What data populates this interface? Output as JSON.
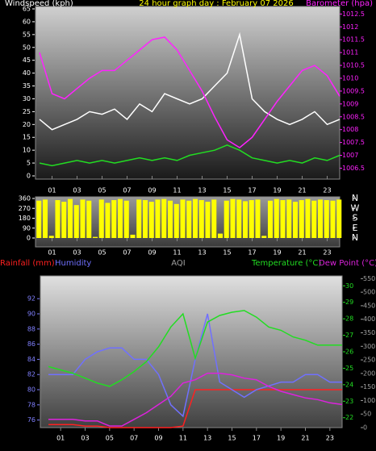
{
  "chart_data": [
    {
      "type": "line",
      "title": "24 hour graph day : February 07 2026",
      "y_label": "Windspeed (kph)",
      "y2_label": "Barometer (hpa)",
      "x": [
        0,
        1,
        2,
        3,
        4,
        5,
        6,
        7,
        8,
        9,
        10,
        11,
        12,
        13,
        14,
        15,
        16,
        17,
        18,
        19,
        20,
        21,
        22,
        23,
        24
      ],
      "xlim": [
        0,
        24
      ],
      "xticks": [
        {
          "value": 1,
          "label": "01"
        },
        {
          "value": 3,
          "label": "03"
        },
        {
          "value": 5,
          "label": "05"
        },
        {
          "value": 7,
          "label": "07"
        },
        {
          "value": 9,
          "label": "09"
        },
        {
          "value": 11,
          "label": "11"
        },
        {
          "value": 13,
          "label": "13"
        },
        {
          "value": 15,
          "label": "15"
        },
        {
          "value": 17,
          "label": "17"
        },
        {
          "value": 19,
          "label": "19"
        },
        {
          "value": 21,
          "label": "21"
        },
        {
          "value": 23,
          "label": "23"
        }
      ],
      "ylim": [
        0,
        65
      ],
      "yticks": [
        0,
        5,
        10,
        15,
        20,
        25,
        30,
        35,
        40,
        45,
        50,
        55,
        60,
        65
      ],
      "y2lim": [
        1006.2,
        1012.7
      ],
      "y2ticks": [
        1006.5,
        1007,
        1007.5,
        1008,
        1008.5,
        1009,
        1009.5,
        1010,
        1010.5,
        1011,
        1011.5,
        1012,
        1012.5
      ],
      "series": [
        {
          "color": "#ffffff",
          "values": [
            22,
            18,
            20,
            22,
            25,
            24,
            26,
            22,
            28,
            25,
            32,
            30,
            28,
            30,
            35,
            40,
            55,
            30,
            25,
            22,
            20,
            22,
            25,
            20,
            22
          ]
        },
        {
          "color": "#22dd22",
          "values": [
            5,
            4,
            5,
            6,
            5,
            6,
            5,
            6,
            7,
            6,
            7,
            6,
            8,
            9,
            10,
            12,
            10,
            7,
            6,
            5,
            6,
            5,
            7,
            6,
            8
          ]
        },
        {
          "color": "#ff22ff",
          "axis": "y2",
          "values": [
            1011.0,
            1009.4,
            1009.2,
            1009.6,
            1010.0,
            1010.3,
            1010.3,
            1010.7,
            1011.1,
            1011.5,
            1011.6,
            1011.1,
            1010.3,
            1009.5,
            1008.5,
            1007.6,
            1007.3,
            1007.7,
            1008.4,
            1009.1,
            1009.7,
            1010.3,
            1010.5,
            1010.1,
            1009.3
          ]
        }
      ]
    },
    {
      "type": "bar",
      "x": [
        0,
        0.5,
        1,
        1.5,
        2,
        2.5,
        3,
        3.5,
        4,
        4.5,
        5,
        5.5,
        6,
        6.5,
        7,
        7.5,
        8,
        8.5,
        9,
        9.5,
        10,
        10.5,
        11,
        11.5,
        12,
        12.5,
        13,
        13.5,
        14,
        14.5,
        15,
        15.5,
        16,
        16.5,
        17,
        17.5,
        18,
        18.5,
        19,
        19.5,
        20,
        20.5,
        21,
        21.5,
        22,
        22.5,
        23,
        23.5,
        24
      ],
      "xlim": [
        0,
        24
      ],
      "xticks": [
        {
          "value": 1,
          "label": "01"
        },
        {
          "value": 3,
          "label": "03"
        },
        {
          "value": 5,
          "label": "05"
        },
        {
          "value": 7,
          "label": "07"
        },
        {
          "value": 9,
          "label": "09"
        },
        {
          "value": 11,
          "label": "11"
        },
        {
          "value": 13,
          "label": "13"
        },
        {
          "value": 15,
          "label": "15"
        },
        {
          "value": 17,
          "label": "17"
        },
        {
          "value": 19,
          "label": "19"
        },
        {
          "value": 21,
          "label": "21"
        },
        {
          "value": 23,
          "label": "23"
        }
      ],
      "ylim": [
        0,
        360
      ],
      "yticks": [
        0,
        90,
        180,
        270,
        360
      ],
      "y2ticks": [
        {
          "value": 360,
          "label": "N"
        },
        {
          "value": 270,
          "label": "W"
        },
        {
          "value": 180,
          "label": "S"
        },
        {
          "value": 90,
          "label": "E"
        },
        {
          "value": 0,
          "label": "N"
        }
      ],
      "color": "#ffff00",
      "values": [
        340,
        350,
        20,
        345,
        330,
        355,
        300,
        350,
        340,
        10,
        350,
        320,
        345,
        355,
        340,
        30,
        350,
        345,
        330,
        350,
        355,
        340,
        310,
        350,
        340,
        355,
        345,
        330,
        350,
        40,
        340,
        355,
        350,
        335,
        345,
        350,
        20,
        340,
        355,
        345,
        350,
        330,
        345,
        355,
        340,
        350,
        345,
        340,
        350
      ]
    },
    {
      "type": "line",
      "x": [
        0,
        1,
        2,
        3,
        4,
        5,
        6,
        7,
        8,
        9,
        10,
        11,
        12,
        13,
        14,
        15,
        16,
        17,
        18,
        19,
        20,
        21,
        22,
        23,
        24
      ],
      "xlim": [
        0,
        24
      ],
      "xticks": [
        {
          "value": 1,
          "label": "01"
        },
        {
          "value": 3,
          "label": "03"
        },
        {
          "value": 5,
          "label": "05"
        },
        {
          "value": 7,
          "label": "07"
        },
        {
          "value": 9,
          "label": "09"
        },
        {
          "value": 11,
          "label": "11"
        },
        {
          "value": 13,
          "label": "13"
        },
        {
          "value": 15,
          "label": "15"
        },
        {
          "value": 17,
          "label": "17"
        },
        {
          "value": 19,
          "label": "19"
        },
        {
          "value": 21,
          "label": "21"
        },
        {
          "value": 23,
          "label": "23"
        }
      ],
      "ylim": [
        75,
        95
      ],
      "yticks": [
        76,
        78,
        80,
        82,
        84,
        86,
        88,
        90,
        92
      ],
      "y2lim": [
        21.4,
        30.6
      ],
      "y2ticks": [
        22,
        23,
        24,
        25,
        26,
        27,
        28,
        29,
        30
      ],
      "y3_label": "AQI",
      "y3lim": [
        0,
        560
      ],
      "y3ticks": [
        0,
        50,
        100,
        150,
        200,
        250,
        300,
        350,
        400,
        450,
        500,
        550
      ],
      "y4lim": [
        0,
        1
      ],
      "series": [
        {
          "name": "Rainfall (mm)",
          "color": "#ff2020",
          "axis": "y4",
          "values": [
            0.02,
            0.02,
            0.02,
            0.01,
            0.01,
            0,
            0,
            0,
            0,
            0,
            0,
            0.01,
            0.25,
            0.25,
            0.25,
            0.25,
            0.25,
            0.25,
            0.25,
            0.25,
            0.25,
            0.25,
            0.25,
            0.25,
            0.25
          ]
        },
        {
          "name": "Humidity",
          "color": "#7070ff",
          "values": [
            82,
            82,
            82,
            84,
            85,
            85.5,
            85.5,
            84,
            84,
            82,
            78,
            76.5,
            84,
            90,
            81,
            80,
            79,
            80,
            80.5,
            81,
            81,
            82,
            82,
            81,
            81
          ]
        },
        {
          "name": "Temperature (°C)",
          "color": "#22dd22",
          "axis": "y2",
          "values": [
            25.1,
            24.9,
            24.7,
            24.4,
            24.1,
            23.9,
            24.3,
            24.8,
            25.4,
            26.3,
            27.5,
            28.3,
            25.6,
            27.8,
            28.2,
            28.4,
            28.5,
            28.1,
            27.5,
            27.3,
            26.9,
            26.7,
            26.4,
            26.4,
            26.4
          ]
        },
        {
          "name": "Dew Point (°C)",
          "color": "#dd22dd",
          "axis": "y2",
          "values": [
            21.9,
            21.9,
            21.9,
            21.8,
            21.8,
            21.5,
            21.5,
            21.9,
            22.3,
            22.8,
            23.3,
            24.1,
            24.3,
            24.7,
            24.7,
            24.6,
            24.4,
            24.3,
            23.9,
            23.6,
            23.4,
            23.2,
            23.1,
            22.9,
            22.8
          ]
        }
      ]
    }
  ]
}
